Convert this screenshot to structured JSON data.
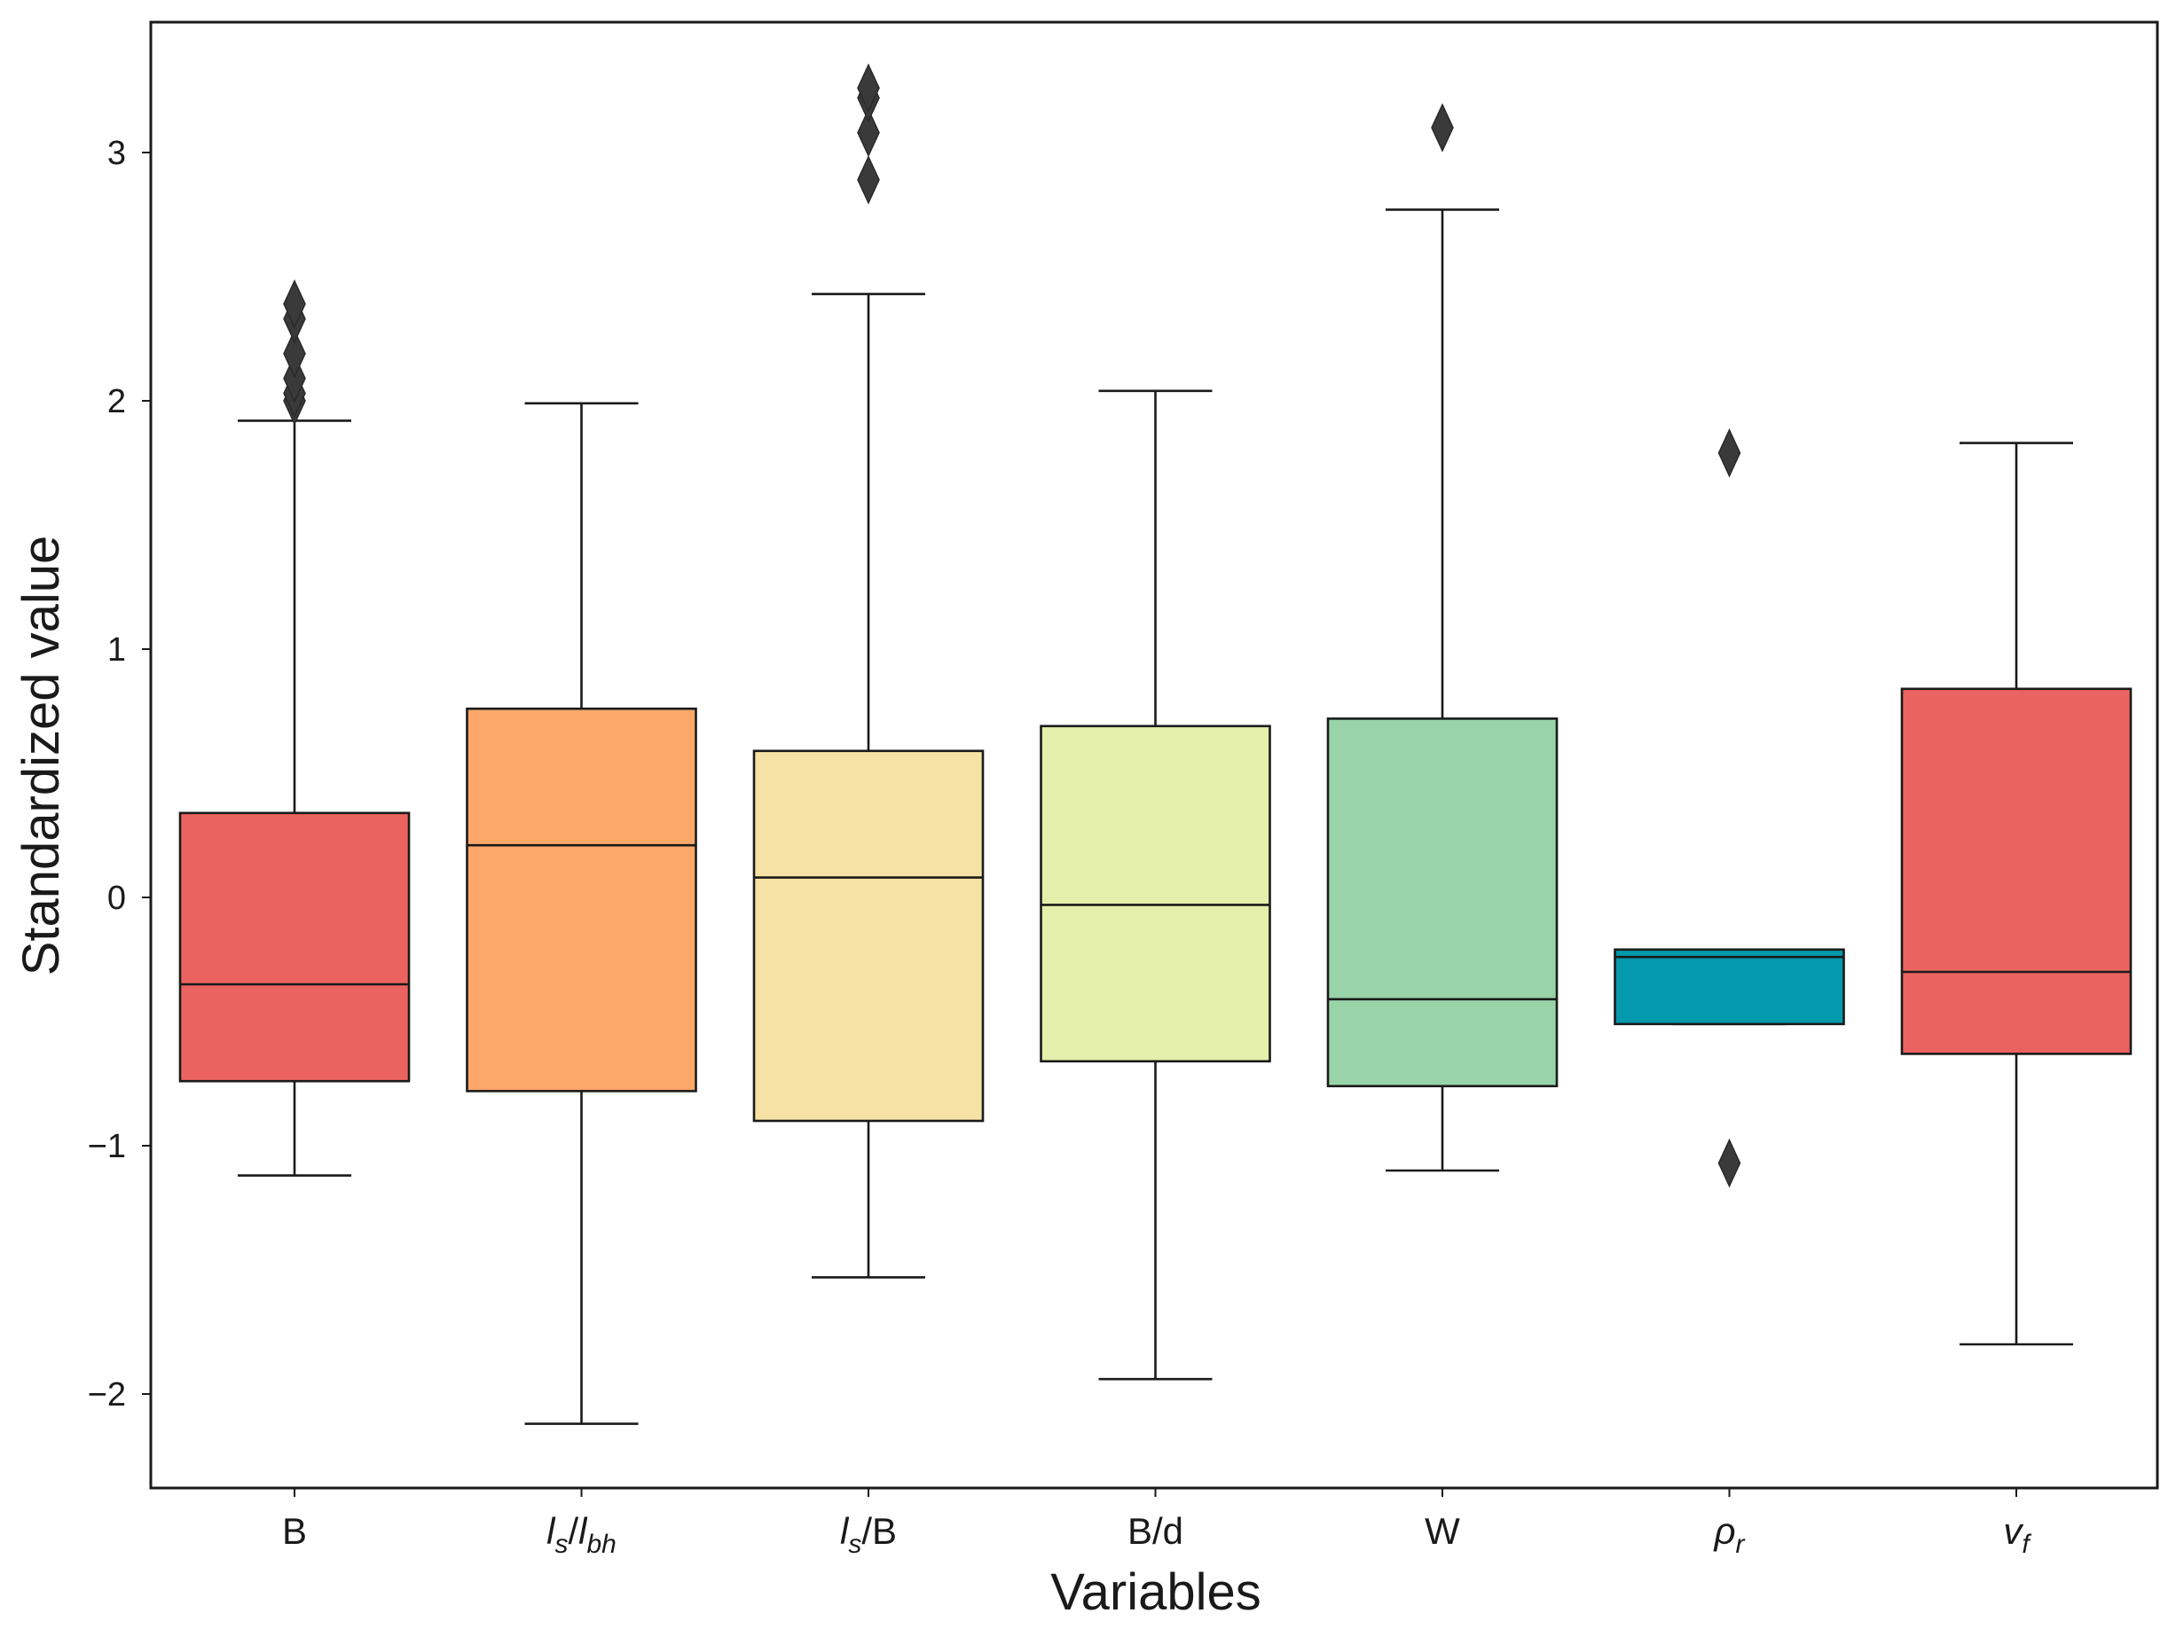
{
  "chart_data": {
    "type": "box",
    "title": "",
    "xlabel": "Variables",
    "ylabel": "Standardized value",
    "ylim": [
      -2.4,
      3.5
    ],
    "yticks": [
      "−2",
      "−1",
      "0",
      "1",
      "2",
      "3"
    ],
    "ytick_values": [
      -2,
      -1,
      0,
      1,
      2,
      3
    ],
    "grid": false,
    "series": [
      {
        "label": {
          "main": "B",
          "italic": false,
          "sub": ""
        },
        "color": "#eb6360",
        "whisker_low": -1.12,
        "q1": -0.74,
        "median": -0.35,
        "q3": 0.34,
        "whisker_high": 1.92,
        "outliers": [
          2.0,
          2.03,
          2.09,
          2.19,
          2.33,
          2.39
        ]
      },
      {
        "label": {
          "main": "l",
          "italic": true,
          "sub": "s",
          "after": "/",
          "main2": "l",
          "sub2": "bh"
        },
        "color": "#fca86b",
        "whisker_low": -2.12,
        "q1": -0.78,
        "median": 0.21,
        "q3": 0.76,
        "whisker_high": 1.99,
        "outliers": []
      },
      {
        "label": {
          "main": "l",
          "italic": true,
          "sub": "s",
          "after": "/B"
        },
        "color": "#f6e2a4",
        "whisker_low": -1.53,
        "q1": -0.9,
        "median": 0.08,
        "q3": 0.59,
        "whisker_high": 2.43,
        "outliers": [
          2.89,
          3.08,
          3.22,
          3.26
        ]
      },
      {
        "label": {
          "main": "B/d",
          "italic": false,
          "sub": ""
        },
        "color": "#e3efaa",
        "whisker_low": -1.94,
        "q1": -0.66,
        "median": -0.03,
        "q3": 0.69,
        "whisker_high": 2.04,
        "outliers": []
      },
      {
        "label": {
          "main": "W",
          "italic": false,
          "sub": ""
        },
        "color": "#98d4a8",
        "whisker_low": -1.1,
        "q1": -0.76,
        "median": -0.41,
        "q3": 0.72,
        "whisker_high": 2.77,
        "outliers": [
          3.1
        ]
      },
      {
        "label": {
          "main": "ρ",
          "italic": true,
          "sub": "r"
        },
        "color": "#0499ac",
        "whisker_low": -0.51,
        "q1": -0.51,
        "median": -0.24,
        "q3": -0.21,
        "whisker_high": -0.21,
        "outliers": [
          1.79,
          -1.07
        ]
      },
      {
        "label": {
          "main": "v",
          "italic": true,
          "sub": "f"
        },
        "color": "#eb6360",
        "whisker_low": -1.8,
        "q1": -0.63,
        "median": -0.3,
        "q3": 0.84,
        "whisker_high": 1.83,
        "outliers": []
      }
    ]
  }
}
